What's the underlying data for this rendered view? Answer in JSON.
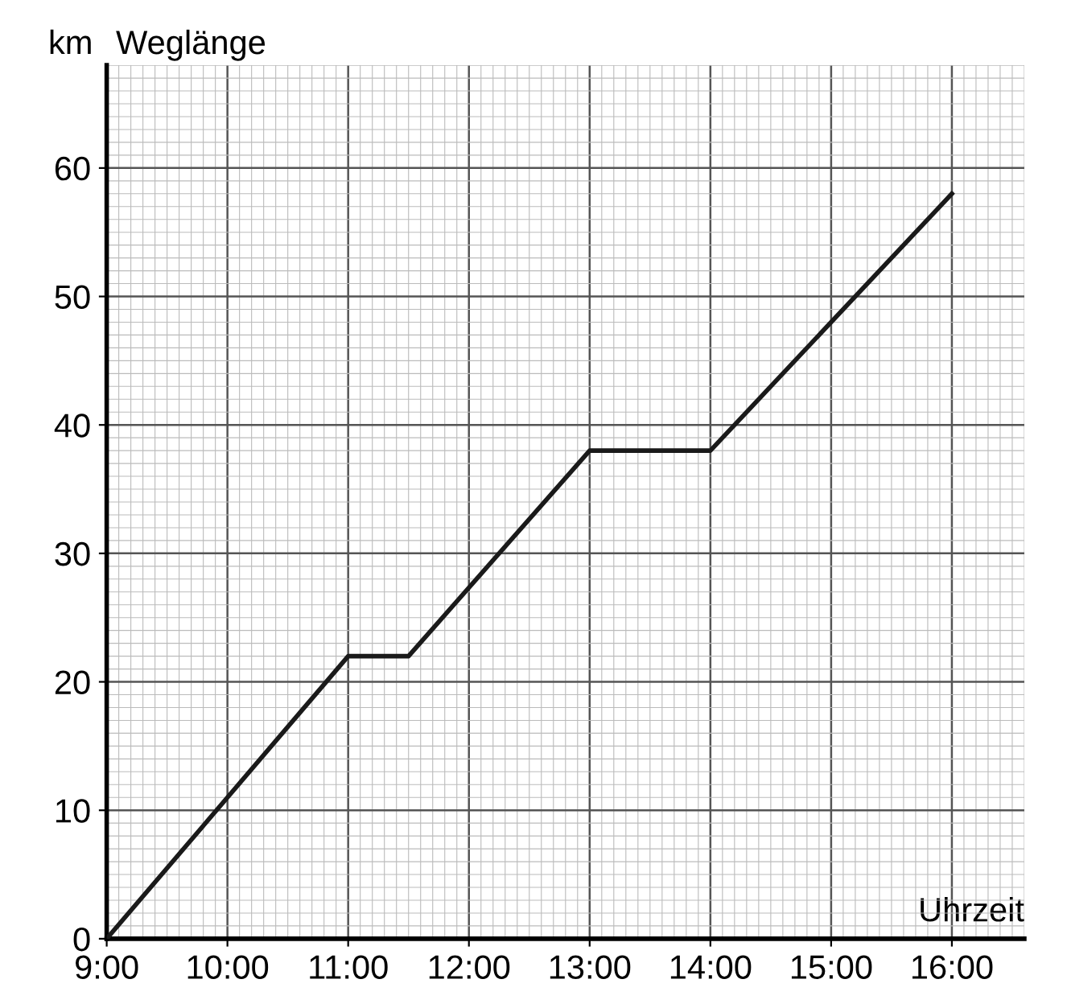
{
  "chart_data": {
    "type": "line",
    "xlabel": "Uhrzeit",
    "ylabel": "Weglänge",
    "annotations": [
      "km"
    ],
    "x": [
      9,
      11,
      11.5,
      13,
      14,
      16
    ],
    "series": [
      {
        "color": "#1a1a1a",
        "values": [
          0,
          22,
          22,
          38,
          38,
          58
        ]
      }
    ],
    "xlim": [
      9,
      16.6
    ],
    "ylim": [
      0,
      68
    ],
    "xticks": [
      {
        "value": 9,
        "label": "9:00"
      },
      {
        "value": 10,
        "label": "10:00"
      },
      {
        "value": 11,
        "label": "11:00"
      },
      {
        "value": 12,
        "label": "12:00"
      },
      {
        "value": 13,
        "label": "13:00"
      },
      {
        "value": 14,
        "label": "14:00"
      },
      {
        "value": 15,
        "label": "15:00"
      },
      {
        "value": 16,
        "label": "16:00"
      }
    ],
    "yticks": [
      0,
      10,
      20,
      30,
      40,
      50,
      60
    ],
    "grid": true,
    "marker": "none",
    "line_style": "solid"
  }
}
